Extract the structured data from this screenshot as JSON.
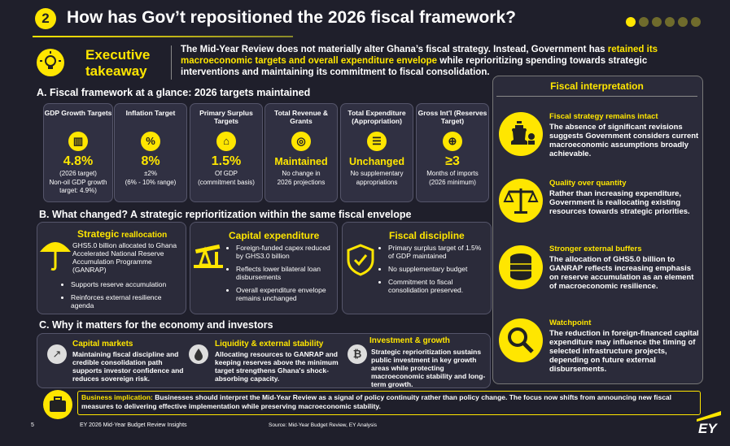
{
  "header": {
    "number": "2",
    "title": "How has Gov’t repositioned the 2026 fiscal framework?"
  },
  "exec": {
    "title1": "Executive",
    "title2": "takeaway",
    "text_a": "The Mid-Year Review does not materially alter Ghana’s fiscal strategy. Instead, Government has ",
    "text_b": "retained its macroeconomic targets and overall expenditure envelope",
    "text_c": " while reprioritizing spending towards strategic interventions and maintaining its commitment to fiscal consolidation."
  },
  "section_a": {
    "title": "A. Fiscal framework at a glance: 2026 targets maintained",
    "cards": [
      {
        "head": "GDP Growth Targets",
        "value": "4.8%",
        "sub1": "(2026 target)",
        "sub2": "Non-oil GDP growth target: 4.9%)"
      },
      {
        "head": "Inflation Target",
        "value": "8%",
        "sub1": "±2%",
        "sub2": "(6% - 10% range)"
      },
      {
        "head": "Primary Surplus Targets",
        "value": "1.5%",
        "sub1": "Of GDP",
        "sub2": "(commitment basis)"
      },
      {
        "head": "Total Revenue & Grants",
        "value": "Maintained",
        "sub1": "No change in",
        "sub2": "2026 projections"
      },
      {
        "head": "Total Expenditure (Appropriation)",
        "value": "Unchanged",
        "sub1": "No supplementary",
        "sub2": "appropriations"
      },
      {
        "head": "Gross Int'l (Reserves Target)",
        "value": "≥3",
        "sub1": "Months of imports",
        "sub2": "(2026 minimum)"
      }
    ]
  },
  "section_b": {
    "title": "B. What changed? A strategic reprioritization within the same fiscal envelope",
    "strategic": {
      "title_a": "Strategic",
      "title_b": " reallocation",
      "lead": "GHS5.0 billion allocated to Ghana Accelerated National Reserve Accumulation Programme (GANRAP)",
      "bullets": [
        "Supports reserve accumulation",
        "Reinforces external resilience agenda"
      ]
    },
    "capex": {
      "title": "Capital expenditure",
      "bullets": [
        "Foreign-funded capex reduced by GHS3.0 billion",
        "Reflects lower bilateral loan disbursements",
        "Overall expenditure envelope remains unchanged"
      ]
    },
    "discipline": {
      "title": "Fiscal discipline",
      "bullets": [
        "Primary surplus target of 1.5% of GDP maintained",
        "No supplementary budget",
        "Commitment to fiscal consolidation preserved."
      ]
    }
  },
  "section_c": {
    "title": "C. Why it matters for the economy and investors",
    "items": [
      {
        "title": "Capital markets",
        "text": "Maintaining fiscal discipline and credible consolidation path supports investor confidence and reduces sovereign risk."
      },
      {
        "title": "Liquidity & external stability",
        "text": "Allocating resources to GANRAP and keeping reserves above the minimum target strengthens Ghana's shock-absorbing capacity."
      },
      {
        "title": "Investment & growth",
        "text": "Strategic reprioritization sustains public investment in key growth areas while protecting macroeconomic stability and long-term growth."
      }
    ]
  },
  "interpretation": {
    "title": "Fiscal interpretation",
    "items": [
      {
        "title": "Fiscal strategy remains intact",
        "text": "The absence of significant revisions suggests Government considers current macroeconomic assumptions broadly achievable."
      },
      {
        "title": "Quality over quantity",
        "text": "Rather than increasing expenditure, Government is reallocating existing resources towards strategic priorities."
      },
      {
        "title": "Stronger external buffers",
        "text": "The allocation of GHS5.0 billion to GANRAP reflects increasing emphasis on reserve accumulation as an element of macroeconomic resilience."
      },
      {
        "title": "Watchpoint",
        "text": "The reduction in foreign-financed capital expenditure may influence the timing of selected infrastructure projects, depending on future external disbursements."
      }
    ]
  },
  "implication": {
    "label": "Business implication:",
    "text": " Businesses should interpret the Mid-Year Review as a signal of policy continuity rather than policy change. The focus now shifts from announcing new fiscal measures to delivering effective implementation while preserving macroeconomic stability."
  },
  "footer": {
    "page": "5",
    "doc": "EY 2026 Mid-Year Budget Review  Insights",
    "source": "Source: Mid-Year Budget Review, EY Analysis",
    "logo": "EY"
  },
  "colors": {
    "accent": "#ffe600",
    "bg": "#1f1f2b"
  }
}
